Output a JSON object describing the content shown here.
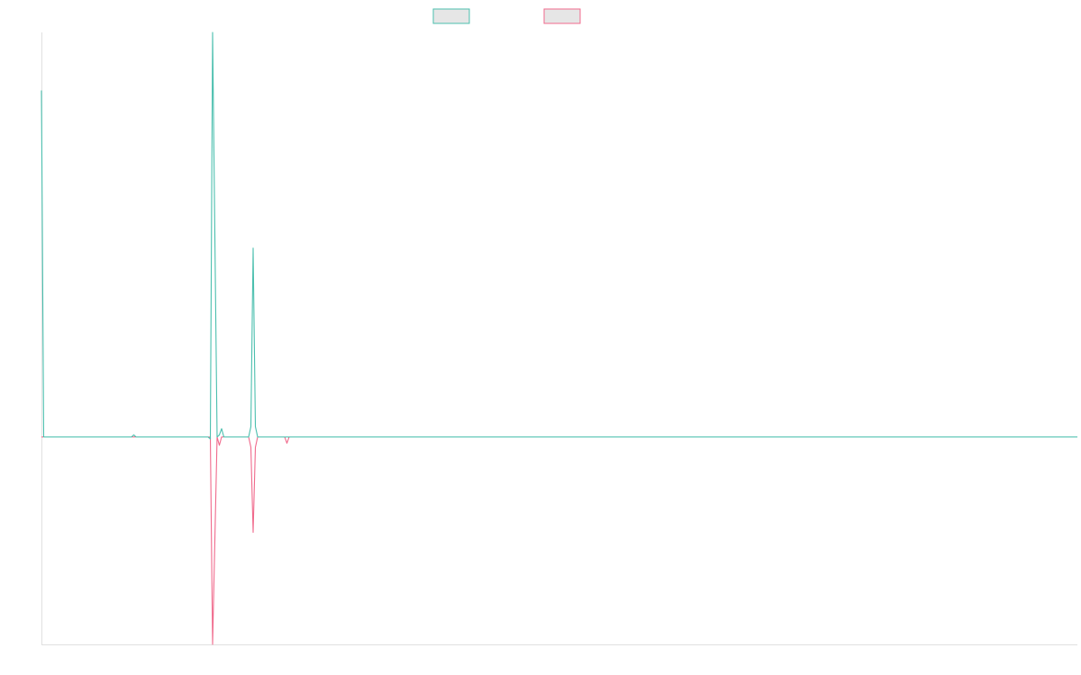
{
  "colors": {
    "series_teal": "#4bbfae",
    "series_pink": "#f06a8c",
    "legend_fill": "#e6e6e6",
    "axis": "#e0e0e0",
    "background": "#ffffff"
  },
  "chart_data": {
    "type": "line",
    "title": "",
    "xlabel": "",
    "ylabel": "",
    "grid": false,
    "legend_position": "top-center",
    "xlim": [
      0,
      460
    ],
    "ylim": [
      -100,
      195
    ],
    "x": [
      0,
      1,
      40,
      41,
      42,
      74,
      75,
      76,
      78,
      79,
      80,
      81,
      92,
      93,
      94,
      95,
      96,
      108,
      109,
      110,
      460
    ],
    "series": [
      {
        "color": "#4bbfae",
        "values": [
          167,
          0,
          0,
          1,
          0,
          0,
          -1,
          195,
          0,
          1,
          4,
          0,
          0,
          5,
          91,
          5,
          0,
          0,
          0,
          0,
          0
        ]
      },
      {
        "color": "#f06a8c",
        "values": [
          0,
          0,
          0,
          0,
          0,
          0,
          0,
          -100,
          0,
          -4,
          0,
          0,
          0,
          -5,
          -46,
          -5,
          0,
          0,
          -3,
          0,
          0
        ]
      }
    ]
  }
}
